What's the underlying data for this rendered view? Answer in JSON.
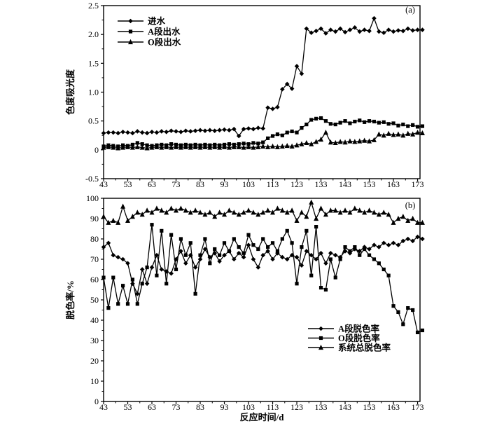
{
  "figure_title": "",
  "chart_data": [
    {
      "panel_label": "(a)",
      "type": "line",
      "xlabel": "",
      "ylabel": "色度吸光度",
      "x_domain": [
        43,
        174
      ],
      "y_domain": [
        -0.5,
        2.5
      ],
      "xticks_major": [
        43,
        53,
        63,
        73,
        83,
        93,
        103,
        113,
        123,
        133,
        143,
        153,
        163,
        173
      ],
      "xticks_minor_step": 5,
      "yticks": {
        "values": [
          2.5,
          2.0,
          1.5,
          1.0,
          0.5,
          0,
          -0.5
        ],
        "labels": [
          "2.5",
          "2.0",
          "1.5",
          "1.0",
          "0.5",
          "0",
          "-0.5"
        ],
        "minor": [
          2.25,
          1.75,
          1.25,
          0.75,
          0.25,
          -0.25
        ]
      },
      "show_x_tick_labels": true,
      "legend_position": "inside-top-left",
      "sampling_interval_d": 2,
      "x": [
        43,
        45,
        47,
        49,
        51,
        53,
        55,
        57,
        59,
        61,
        63,
        65,
        67,
        69,
        71,
        73,
        75,
        77,
        79,
        81,
        83,
        85,
        87,
        89,
        91,
        93,
        95,
        97,
        99,
        101,
        103,
        105,
        107,
        109,
        111,
        113,
        115,
        117,
        119,
        121,
        123,
        125,
        127,
        129,
        131,
        133,
        135,
        137,
        139,
        141,
        143,
        145,
        147,
        149,
        151,
        153,
        155,
        157,
        159,
        161,
        163,
        165,
        167,
        169,
        171,
        173,
        175
      ],
      "series": [
        {
          "key": "influent",
          "name": "进水",
          "marker": "diamond",
          "values": [
            0.29,
            0.3,
            0.3,
            0.29,
            0.31,
            0.3,
            0.29,
            0.32,
            0.3,
            0.29,
            0.31,
            0.3,
            0.32,
            0.31,
            0.33,
            0.32,
            0.31,
            0.33,
            0.32,
            0.33,
            0.34,
            0.33,
            0.34,
            0.33,
            0.34,
            0.35,
            0.34,
            0.36,
            0.24,
            0.36,
            0.37,
            0.36,
            0.38,
            0.37,
            0.73,
            0.71,
            0.74,
            1.05,
            1.14,
            1.06,
            1.45,
            1.32,
            2.1,
            2.03,
            2.06,
            2.1,
            2.02,
            2.08,
            2.05,
            2.1,
            2.04,
            2.08,
            2.12,
            2.05,
            2.08,
            2.06,
            2.28,
            2.05,
            2.03,
            2.08,
            2.05,
            2.07,
            2.06,
            2.1,
            2.07,
            2.08,
            2.08
          ]
        },
        {
          "key": "a-stage-effluent",
          "name": "A段出水",
          "marker": "square",
          "values": [
            0.06,
            0.08,
            0.07,
            0.06,
            0.08,
            0.07,
            0.09,
            0.12,
            0.1,
            0.08,
            0.07,
            0.08,
            0.09,
            0.08,
            0.1,
            0.09,
            0.08,
            0.09,
            0.08,
            0.09,
            0.08,
            0.09,
            0.08,
            0.09,
            0.08,
            0.09,
            0.1,
            0.09,
            0.1,
            0.11,
            0.1,
            0.12,
            0.11,
            0.13,
            0.2,
            0.24,
            0.27,
            0.25,
            0.3,
            0.32,
            0.3,
            0.38,
            0.44,
            0.52,
            0.54,
            0.55,
            0.5,
            0.45,
            0.44,
            0.47,
            0.5,
            0.46,
            0.49,
            0.51,
            0.48,
            0.5,
            0.49,
            0.47,
            0.48,
            0.45,
            0.46,
            0.42,
            0.44,
            0.41,
            0.43,
            0.4,
            0.41
          ]
        },
        {
          "key": "o-stage-effluent",
          "name": "O段出水",
          "marker": "triangle",
          "values": [
            0.04,
            0.05,
            0.04,
            0.03,
            0.04,
            0.05,
            0.04,
            0.05,
            0.04,
            0.03,
            0.04,
            0.05,
            0.04,
            0.05,
            0.04,
            0.05,
            0.04,
            0.05,
            0.04,
            0.05,
            0.04,
            0.05,
            0.04,
            0.05,
            0.04,
            0.05,
            0.04,
            0.05,
            0.05,
            0.04,
            0.05,
            0.04,
            0.05,
            0.06,
            0.05,
            0.06,
            0.05,
            0.06,
            0.07,
            0.06,
            0.08,
            0.1,
            0.12,
            0.1,
            0.14,
            0.18,
            0.3,
            0.13,
            0.12,
            0.14,
            0.13,
            0.15,
            0.14,
            0.15,
            0.16,
            0.15,
            0.17,
            0.27,
            0.25,
            0.28,
            0.26,
            0.27,
            0.25,
            0.28,
            0.27,
            0.3,
            0.29
          ]
        }
      ]
    },
    {
      "panel_label": "(b)",
      "type": "line",
      "xlabel": "反应时间/d",
      "ylabel": "脱色率/%",
      "x_domain": [
        43,
        174
      ],
      "y_domain": [
        0,
        100
      ],
      "xticks_major": [
        43,
        53,
        63,
        73,
        83,
        93,
        103,
        113,
        123,
        133,
        143,
        153,
        163,
        173
      ],
      "xticks_minor_step": 5,
      "yticks": {
        "values": [
          100,
          90,
          80,
          70,
          60,
          50,
          40,
          30,
          20,
          10,
          0
        ],
        "labels": [
          "100",
          "90",
          "80",
          "70",
          "60",
          "50",
          "40",
          "30",
          "20",
          "10",
          "0"
        ],
        "minor": [
          95,
          85,
          75,
          65,
          55,
          45,
          35,
          25,
          15,
          5
        ]
      },
      "show_x_tick_labels": true,
      "legend_position": "inside-bottom-center",
      "sampling_interval_d": 2,
      "x": [
        43,
        45,
        47,
        49,
        51,
        53,
        55,
        57,
        59,
        61,
        63,
        65,
        67,
        69,
        71,
        73,
        75,
        77,
        79,
        81,
        83,
        85,
        87,
        89,
        91,
        93,
        95,
        97,
        99,
        101,
        103,
        105,
        107,
        109,
        111,
        113,
        115,
        117,
        119,
        121,
        123,
        125,
        127,
        129,
        131,
        133,
        135,
        137,
        139,
        141,
        143,
        145,
        147,
        149,
        151,
        153,
        155,
        157,
        159,
        161,
        163,
        165,
        167,
        169,
        171,
        173,
        175
      ],
      "series": [
        {
          "key": "a-stage-decolorization",
          "name": "A段脱色率",
          "marker": "diamond",
          "values": [
            76,
            78,
            72,
            71,
            70,
            68,
            58,
            53,
            65,
            58,
            66,
            72,
            65,
            64,
            63,
            70,
            74,
            68,
            72,
            66,
            70,
            75,
            71,
            73,
            69,
            72,
            74,
            70,
            73,
            71,
            77,
            70,
            66,
            72,
            74,
            70,
            73,
            71,
            70,
            72,
            71,
            67,
            74,
            72,
            70,
            73,
            68,
            73,
            72,
            71,
            74,
            73,
            75,
            74,
            76,
            75,
            77,
            76,
            78,
            77,
            78,
            77,
            79,
            80,
            79,
            81,
            80
          ]
        },
        {
          "key": "o-stage-decolorization",
          "name": "O段脱色率",
          "marker": "square",
          "values": [
            61,
            46,
            61,
            48,
            57,
            48,
            60,
            48,
            58,
            66,
            87,
            62,
            84,
            58,
            82,
            65,
            80,
            72,
            78,
            53,
            72,
            80,
            68,
            75,
            72,
            78,
            74,
            80,
            76,
            73,
            82,
            77,
            75,
            80,
            76,
            78,
            74,
            80,
            84,
            78,
            58,
            76,
            84,
            62,
            86,
            56,
            55,
            70,
            61,
            70,
            76,
            74,
            76,
            72,
            75,
            72,
            70,
            68,
            65,
            62,
            47,
            44,
            38,
            46,
            45,
            34,
            35
          ]
        },
        {
          "key": "system-total-decolorization",
          "name": "系统总脱色率",
          "marker": "triangle",
          "values": [
            91,
            88,
            89,
            88,
            96,
            89,
            91,
            93,
            92,
            94,
            93,
            95,
            94,
            93,
            95,
            94,
            95,
            94,
            93,
            94,
            93,
            92,
            93,
            91,
            93,
            92,
            94,
            93,
            92,
            93,
            94,
            93,
            92,
            93,
            94,
            93,
            95,
            94,
            93,
            94,
            89,
            93,
            91,
            98,
            90,
            95,
            92,
            94,
            94,
            93,
            94,
            93,
            95,
            94,
            93,
            94,
            93,
            92,
            93,
            92,
            88,
            90,
            91,
            89,
            90,
            88,
            88
          ]
        }
      ]
    }
  ],
  "style": {
    "ink_color": "#000000",
    "background_color": "#ffffff"
  }
}
